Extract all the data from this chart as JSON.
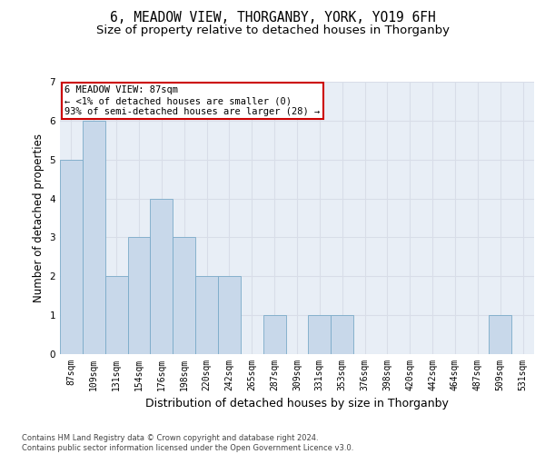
{
  "title": "6, MEADOW VIEW, THORGANBY, YORK, YO19 6FH",
  "subtitle": "Size of property relative to detached houses in Thorganby",
  "xlabel": "Distribution of detached houses by size in Thorganby",
  "ylabel": "Number of detached properties",
  "categories": [
    "87sqm",
    "109sqm",
    "131sqm",
    "154sqm",
    "176sqm",
    "198sqm",
    "220sqm",
    "242sqm",
    "265sqm",
    "287sqm",
    "309sqm",
    "331sqm",
    "353sqm",
    "376sqm",
    "398sqm",
    "420sqm",
    "442sqm",
    "464sqm",
    "487sqm",
    "509sqm",
    "531sqm"
  ],
  "values": [
    5,
    6,
    2,
    3,
    4,
    3,
    2,
    2,
    0,
    1,
    0,
    1,
    1,
    0,
    0,
    0,
    0,
    0,
    0,
    1,
    0
  ],
  "bar_color": "#c8d8ea",
  "bar_edge_color": "#7aaac8",
  "ylim": [
    0,
    7
  ],
  "yticks": [
    0,
    1,
    2,
    3,
    4,
    5,
    6,
    7
  ],
  "grid_color": "#d8dde8",
  "background_color": "#e8eef6",
  "annotation_text": "6 MEADOW VIEW: 87sqm\n← <1% of detached houses are smaller (0)\n93% of semi-detached houses are larger (28) →",
  "annotation_box_color": "#ffffff",
  "annotation_border_color": "#cc0000",
  "footer": "Contains HM Land Registry data © Crown copyright and database right 2024.\nContains public sector information licensed under the Open Government Licence v3.0.",
  "title_fontsize": 10.5,
  "subtitle_fontsize": 9.5,
  "xlabel_fontsize": 9,
  "tick_fontsize": 7,
  "ylabel_fontsize": 8.5,
  "annotation_fontsize": 7.5,
  "footer_fontsize": 6
}
